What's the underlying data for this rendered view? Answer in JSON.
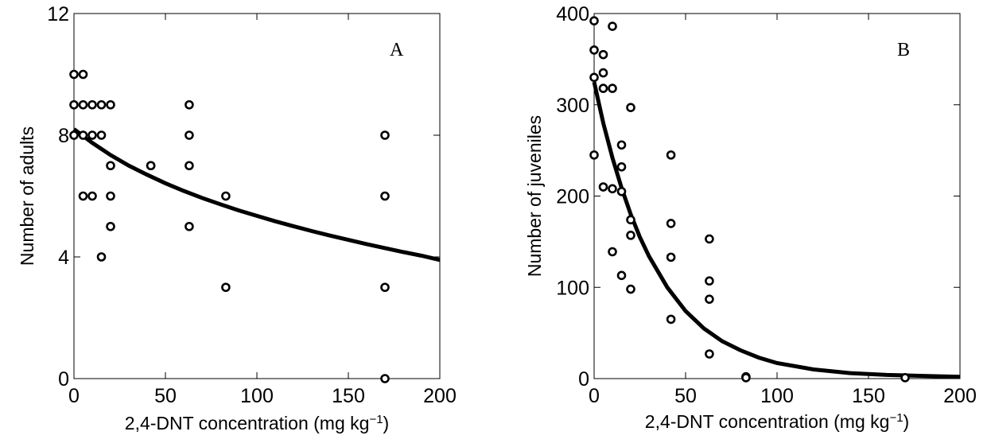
{
  "chart_data": [
    {
      "type": "scatter",
      "panel_label": "A",
      "xlabel_main": "2,4-DNT concentration (mg kg",
      "xlabel_sup": "−1",
      "xlabel_close": ")",
      "ylabel": "Number of adults",
      "xlim": [
        0,
        200
      ],
      "ylim": [
        0,
        12
      ],
      "xticks": [
        0,
        50,
        100,
        150,
        200
      ],
      "yticks": [
        0,
        4,
        8,
        12
      ],
      "points": [
        [
          0,
          10
        ],
        [
          0,
          9
        ],
        [
          0,
          8
        ],
        [
          5,
          10
        ],
        [
          5,
          9
        ],
        [
          5,
          8
        ],
        [
          5,
          6
        ],
        [
          10,
          9
        ],
        [
          10,
          8
        ],
        [
          10,
          6
        ],
        [
          15,
          9
        ],
        [
          15,
          8
        ],
        [
          15,
          4
        ],
        [
          20,
          9
        ],
        [
          20,
          7
        ],
        [
          20,
          6
        ],
        [
          20,
          5
        ],
        [
          42,
          7
        ],
        [
          42,
          7
        ],
        [
          63,
          9
        ],
        [
          63,
          8
        ],
        [
          63,
          7
        ],
        [
          63,
          5
        ],
        [
          83,
          6
        ],
        [
          83,
          3
        ],
        [
          170,
          8
        ],
        [
          170,
          6
        ],
        [
          170,
          3
        ],
        [
          170,
          0
        ]
      ],
      "fit_curve": {
        "x": [
          0,
          10,
          20,
          30,
          40,
          50,
          60,
          70,
          80,
          90,
          100,
          110,
          120,
          130,
          140,
          150,
          160,
          170,
          180,
          190,
          200
        ],
        "y": [
          8.2,
          7.75,
          7.35,
          7.0,
          6.7,
          6.42,
          6.17,
          5.94,
          5.73,
          5.53,
          5.35,
          5.17,
          5.01,
          4.85,
          4.7,
          4.56,
          4.42,
          4.29,
          4.16,
          4.04,
          3.9
        ]
      }
    },
    {
      "type": "scatter",
      "panel_label": "B",
      "xlabel_main": "2,4-DNT concentration (mg kg",
      "xlabel_sup": "−1",
      "xlabel_close": ")",
      "ylabel": "Number of juveniles",
      "xlim": [
        0,
        200
      ],
      "ylim": [
        0,
        400
      ],
      "xticks": [
        0,
        50,
        100,
        150,
        200
      ],
      "yticks": [
        0,
        100,
        200,
        300,
        400
      ],
      "points": [
        [
          0,
          392
        ],
        [
          0,
          360
        ],
        [
          0,
          330
        ],
        [
          0,
          245
        ],
        [
          5,
          355
        ],
        [
          5,
          335
        ],
        [
          5,
          318
        ],
        [
          5,
          210
        ],
        [
          10,
          386
        ],
        [
          10,
          318
        ],
        [
          10,
          208
        ],
        [
          10,
          139
        ],
        [
          15,
          256
        ],
        [
          15,
          232
        ],
        [
          15,
          205
        ],
        [
          15,
          113
        ],
        [
          20,
          297
        ],
        [
          20,
          174
        ],
        [
          20,
          157
        ],
        [
          20,
          98
        ],
        [
          42,
          245
        ],
        [
          42,
          170
        ],
        [
          42,
          133
        ],
        [
          42,
          65
        ],
        [
          63,
          153
        ],
        [
          63,
          107
        ],
        [
          63,
          87
        ],
        [
          63,
          27
        ],
        [
          83,
          2
        ],
        [
          83,
          1
        ],
        [
          170,
          1
        ]
      ],
      "fit_curve": {
        "x": [
          0,
          5,
          10,
          15,
          20,
          25,
          30,
          40,
          50,
          60,
          70,
          80,
          90,
          100,
          120,
          140,
          160,
          180,
          200
        ],
        "y": [
          325,
          280,
          242,
          209,
          180,
          155,
          134,
          100,
          74,
          55,
          41,
          31,
          23,
          17,
          10,
          6,
          4,
          3,
          2
        ]
      }
    }
  ]
}
